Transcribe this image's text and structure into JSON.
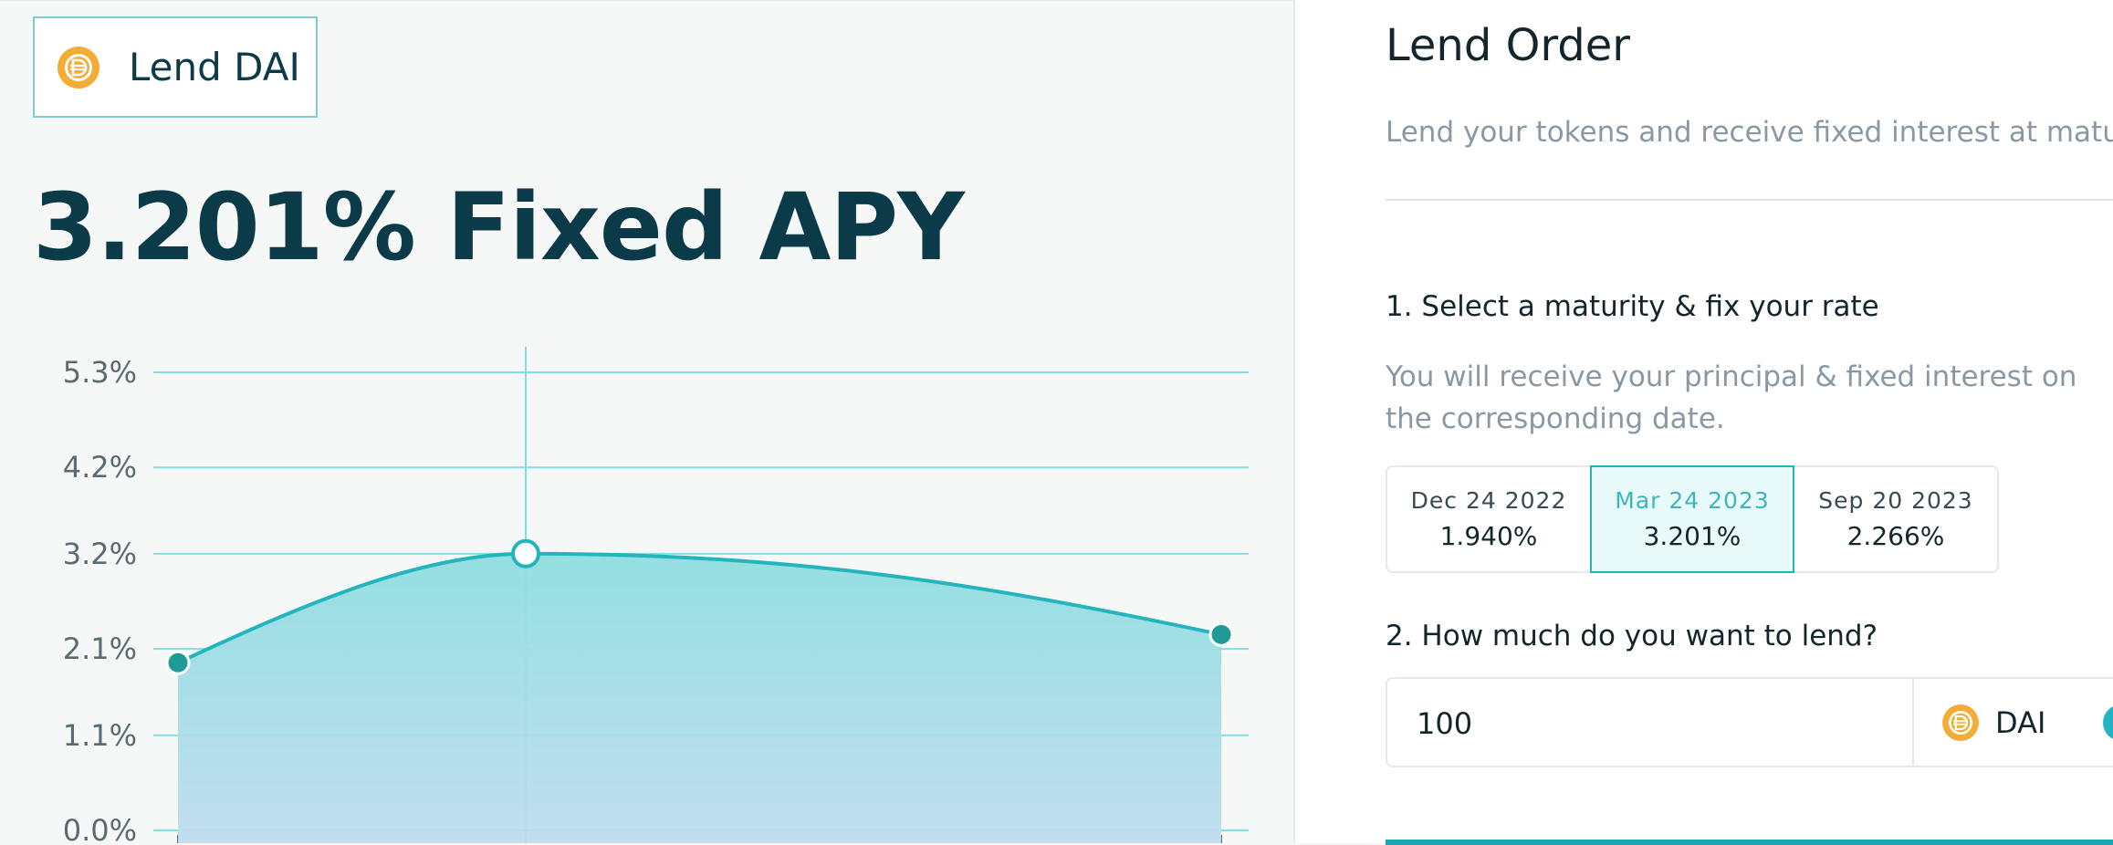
{
  "left": {
    "lend_tab_label": "Lend DAI",
    "token_icon": "dai-icon",
    "apy_heading": "3.201% Fixed APY"
  },
  "chart_data": {
    "type": "area",
    "categories": [
      "Dec 24 2022",
      "Mar 24 2023",
      "Sep 20 2023"
    ],
    "values": [
      1.94,
      3.201,
      2.266
    ],
    "ylim": [
      0.0,
      5.3
    ],
    "y_ticks": [
      "5.3%",
      "4.2%",
      "3.2%",
      "2.1%",
      "1.1%",
      "0.0%"
    ],
    "y_tick_values": [
      5.3,
      4.2,
      3.2,
      2.1,
      1.1,
      0.0
    ],
    "highlight_index": 1,
    "grid": true,
    "colors": {
      "line": "#23b4bd",
      "grid": "#7fdfe6",
      "point": "#1f9b97",
      "fill_top": "#8fdedf",
      "fill_bottom": "#bfdcee"
    }
  },
  "order": {
    "title": "Lend Order",
    "subtitle": "Lend your tokens and receive fixed interest at maturity.",
    "step1_title": "1. Select a maturity & fix your rate",
    "step1_desc": "You will receive your principal & fixed interest on the corresponding date.",
    "maturities": [
      {
        "date": "Dec 24 2022",
        "rate": "1.940%"
      },
      {
        "date": "Mar 24 2023",
        "rate": "3.201%"
      },
      {
        "date": "Sep 20 2023",
        "rate": "2.266%"
      }
    ],
    "selected_maturity": 1,
    "step2_title": "2. How much do you want to lend?",
    "amount_value": "100",
    "token": "DAI"
  },
  "colors": {
    "accent": "#23b4bd",
    "heading": "#0b3a48",
    "muted": "#8a98a4"
  }
}
